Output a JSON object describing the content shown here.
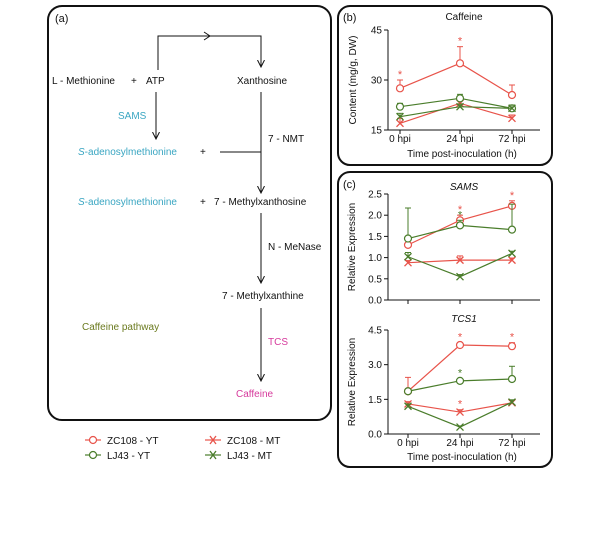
{
  "panel_a": {
    "label": "(a)",
    "nodes": {
      "l_methionine": "L - Methionine",
      "plus1": "+",
      "atp": "ATP",
      "xanthosine": "Xanthosine",
      "sams": "SAMS",
      "sam1": "S-adenosylmethionine",
      "sam1_italic": "S",
      "sam1_rest": "-adenosylmethionine",
      "plus2": "+",
      "nmt": "7 - NMT",
      "sam2_italic": "S",
      "sam2_rest": "-adenosylmethionine",
      "plus3": "+",
      "methylxanthosine": "7 - Methylxanthosine",
      "menase": "N - MeNase",
      "methylxanthine": "7 - Methylxanthine",
      "pathway_label": "Caffeine pathway",
      "tcs": "TCS",
      "caffeine": "Caffeine"
    }
  },
  "legend": {
    "items": [
      {
        "label": "ZC108 - YT",
        "color": "#e8534a",
        "marker": "circle"
      },
      {
        "label": "ZC108 - MT",
        "color": "#e8534a",
        "marker": "cross"
      },
      {
        "label": "LJ43 - YT",
        "color": "#4a7d2b",
        "marker": "circle"
      },
      {
        "label": "LJ43 - MT",
        "color": "#4a7d2b",
        "marker": "cross"
      }
    ]
  },
  "colors": {
    "red": "#e8534a",
    "green": "#4a7d2b",
    "cyan": "#3aa6c2",
    "magenta": "#d63a9c",
    "olive": "#6b7a1f"
  },
  "chart_data": [
    {
      "type": "line",
      "panel": "(b)",
      "title": "Caffeine",
      "title_italic": false,
      "xlabel": "Time post-inoculation (h)",
      "ylabel": "Content (mg/g, DW)",
      "categories": [
        "0 hpi",
        "24 hpi",
        "72 hpi"
      ],
      "ylim": [
        15,
        45
      ],
      "yticks": [
        "15",
        "30",
        "45"
      ],
      "ytick_values": [
        15,
        30,
        45
      ],
      "series": [
        {
          "name": "ZC108 - YT",
          "color": "#e8534a",
          "marker": "circle",
          "values": [
            27.5,
            35,
            25.5
          ],
          "err": [
            2.5,
            5,
            3
          ],
          "stars": [
            true,
            true,
            false
          ]
        },
        {
          "name": "ZC108 - MT",
          "color": "#e8534a",
          "marker": "cross",
          "values": [
            17,
            23,
            18.5
          ],
          "err": [
            1.5,
            1,
            1
          ],
          "stars": [
            false,
            false,
            false
          ]
        },
        {
          "name": "LJ43 - YT",
          "color": "#4a7d2b",
          "marker": "circle",
          "values": [
            22,
            24.5,
            21.5
          ],
          "err": [
            1,
            1.2,
            1
          ],
          "stars": [
            false,
            false,
            false
          ]
        },
        {
          "name": "LJ43 - MT",
          "color": "#4a7d2b",
          "marker": "cross",
          "values": [
            19,
            22,
            21.5
          ],
          "err": [
            1,
            0.8,
            1
          ],
          "stars": [
            false,
            false,
            false
          ]
        }
      ]
    },
    {
      "type": "line",
      "panel": "(c)",
      "title": "SAMS",
      "title_italic": true,
      "xlabel": "",
      "ylabel": "Relative Expression",
      "categories": [
        "",
        "",
        ""
      ],
      "ylim": [
        0,
        2.5
      ],
      "yticks": [
        "0.0",
        "0.5",
        "1.0",
        "1.5",
        "2.0",
        "2.5"
      ],
      "ytick_values": [
        0,
        0.5,
        1.0,
        1.5,
        2.0,
        2.5
      ],
      "series": [
        {
          "name": "ZC108 - YT",
          "color": "#e8534a",
          "marker": "circle",
          "values": [
            1.3,
            1.88,
            2.22
          ],
          "err": [
            0.15,
            0.12,
            0.12
          ],
          "stars": [
            false,
            true,
            true
          ]
        },
        {
          "name": "ZC108 - MT",
          "color": "#e8534a",
          "marker": "cross",
          "values": [
            0.88,
            0.94,
            0.94
          ],
          "err": [
            0.05,
            0.1,
            0.05
          ],
          "stars": [
            false,
            false,
            false
          ]
        },
        {
          "name": "LJ43 - YT",
          "color": "#4a7d2b",
          "marker": "circle",
          "values": [
            1.45,
            1.76,
            1.66
          ],
          "err": [
            0.72,
            0.12,
            0.6
          ],
          "stars": [
            false,
            true,
            false
          ]
        },
        {
          "name": "LJ43 - MT",
          "color": "#4a7d2b",
          "marker": "cross",
          "values": [
            1.02,
            0.55,
            1.1
          ],
          "err": [
            0.1,
            0.05,
            0.05
          ],
          "stars": [
            false,
            false,
            false
          ]
        }
      ]
    },
    {
      "type": "line",
      "panel": "(c)",
      "title": "TCS1",
      "title_italic": true,
      "xlabel": "Time post-inoculation (h)",
      "ylabel": "Relative Expression",
      "categories": [
        "0 hpi",
        "24 hpi",
        "72 hpi"
      ],
      "ylim": [
        0,
        4.5
      ],
      "yticks": [
        "0.0",
        "1.5",
        "3.0",
        "4.5"
      ],
      "ytick_values": [
        0,
        1.5,
        3.0,
        4.5
      ],
      "series": [
        {
          "name": "ZC108 - YT",
          "color": "#e8534a",
          "marker": "circle",
          "values": [
            1.85,
            3.85,
            3.8
          ],
          "err": [
            0.6,
            0.1,
            0.15
          ],
          "stars": [
            false,
            true,
            true
          ]
        },
        {
          "name": "ZC108 - MT",
          "color": "#e8534a",
          "marker": "cross",
          "values": [
            1.3,
            0.95,
            1.35
          ],
          "err": [
            0.1,
            0.1,
            0.1
          ],
          "stars": [
            false,
            true,
            false
          ]
        },
        {
          "name": "LJ43 - YT",
          "color": "#4a7d2b",
          "marker": "circle",
          "values": [
            1.85,
            2.3,
            2.38
          ],
          "err": [
            0.1,
            0.1,
            0.55
          ],
          "stars": [
            false,
            true,
            false
          ]
        },
        {
          "name": "LJ43 - MT",
          "color": "#4a7d2b",
          "marker": "cross",
          "values": [
            1.2,
            0.3,
            1.38
          ],
          "err": [
            0.1,
            0.05,
            0.1
          ],
          "stars": [
            false,
            false,
            false
          ]
        }
      ]
    }
  ]
}
